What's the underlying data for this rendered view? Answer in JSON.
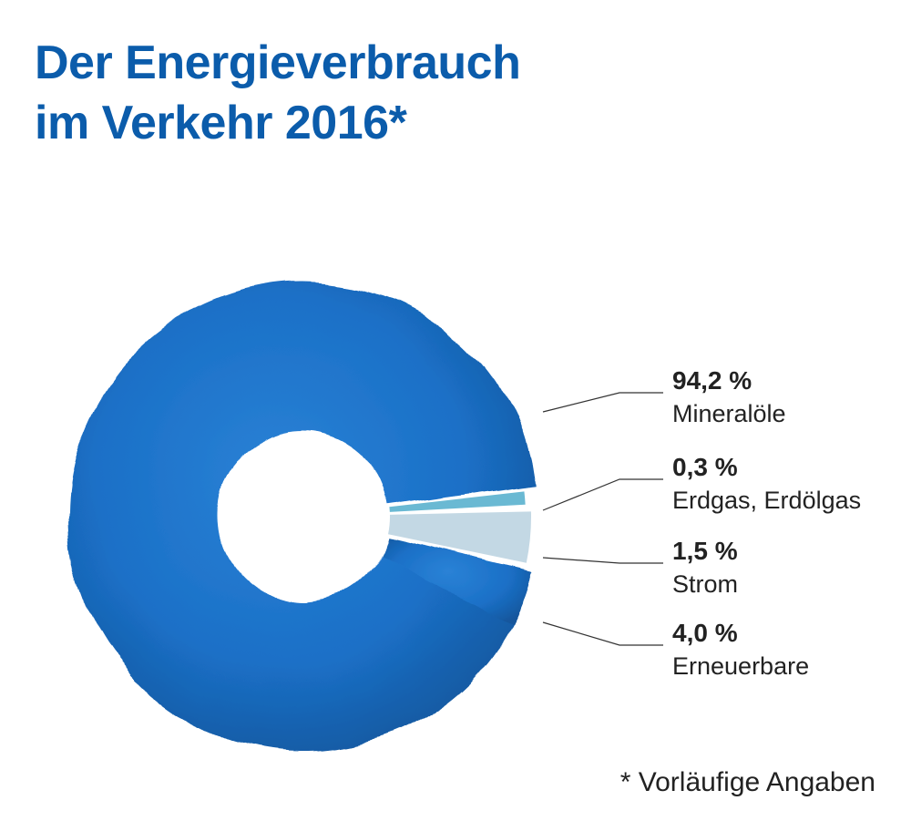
{
  "title": {
    "line1": "Der Energieverbrauch",
    "line2": "im Verkehr 2016*"
  },
  "footnote": "* Vorläufige Angaben",
  "chart_data": {
    "type": "pie",
    "style": "donut",
    "title": "Der Energieverbrauch im Verkehr 2016*",
    "slices": [
      {
        "label": "Mineralöle",
        "value": 94.2,
        "value_label": "94,2 %",
        "color": "#1a6fc6"
      },
      {
        "label": "Erdgas, Erdölgas",
        "value": 0.3,
        "value_label": "0,3 %",
        "color": "#6ab9d3"
      },
      {
        "label": "Strom",
        "value": 1.5,
        "value_label": "1,5 %",
        "color": "#c3d8e4"
      },
      {
        "label": "Erneuerbare",
        "value": 4.0,
        "value_label": "4,0 %",
        "color": "#1a6fc6"
      }
    ],
    "legend": "right"
  }
}
